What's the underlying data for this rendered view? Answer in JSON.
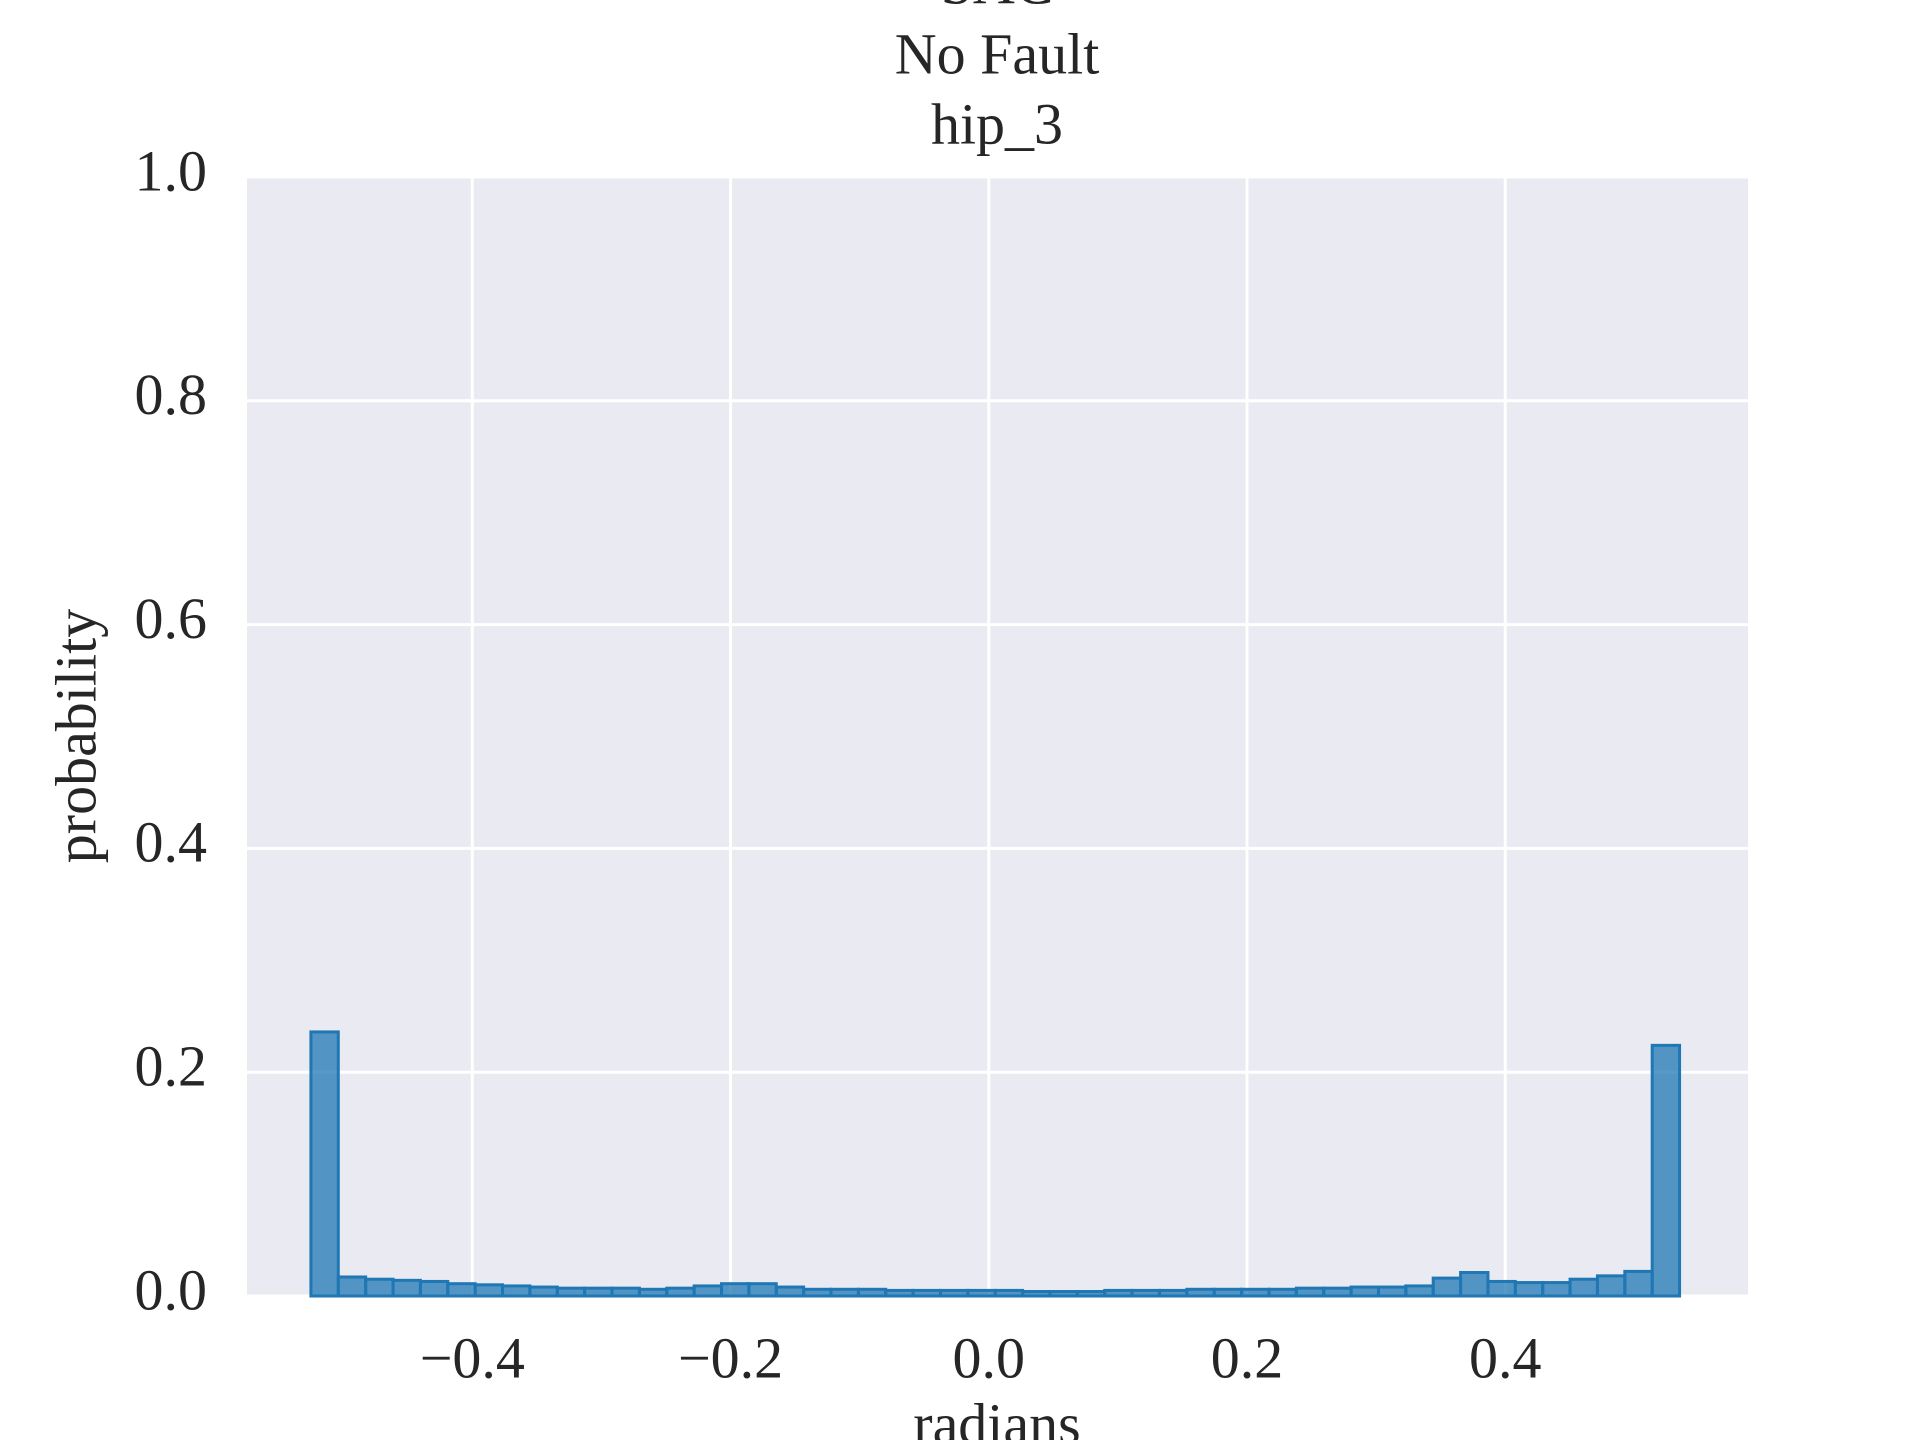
{
  "chart_data": {
    "type": "histogram",
    "title": [
      "SAC",
      "No Fault",
      "hip_3"
    ],
    "xlabel": "radians",
    "ylabel": "probability",
    "bins": [
      -0.525,
      -0.5038,
      -0.4826,
      -0.4614,
      -0.4402,
      -0.419,
      -0.3978,
      -0.3766,
      -0.3554,
      -0.3342,
      -0.313,
      -0.2918,
      -0.2706,
      -0.2494,
      -0.2282,
      -0.207,
      -0.1858,
      -0.1646,
      -0.1434,
      -0.1222,
      -0.101,
      -0.0798,
      -0.0586,
      -0.0374,
      -0.0162,
      0.005,
      0.0262,
      0.0474,
      0.0686,
      0.0898,
      0.111,
      0.1322,
      0.1534,
      0.1746,
      0.1958,
      0.217,
      0.2382,
      0.2594,
      0.2806,
      0.3018,
      0.323,
      0.3442,
      0.3654,
      0.3866,
      0.4078,
      0.429,
      0.4502,
      0.4714,
      0.4926,
      0.5138,
      0.535
    ],
    "values": [
      0.236,
      0.017,
      0.015,
      0.014,
      0.013,
      0.011,
      0.01,
      0.009,
      0.008,
      0.007,
      0.007,
      0.007,
      0.006,
      0.007,
      0.009,
      0.011,
      0.011,
      0.008,
      0.006,
      0.006,
      0.006,
      0.005,
      0.005,
      0.005,
      0.005,
      0.005,
      0.004,
      0.004,
      0.004,
      0.005,
      0.005,
      0.005,
      0.006,
      0.006,
      0.006,
      0.006,
      0.007,
      0.007,
      0.008,
      0.008,
      0.009,
      0.016,
      0.021,
      0.013,
      0.012,
      0.012,
      0.015,
      0.018,
      0.022,
      0.224
    ],
    "color": "#1f77b4",
    "xlim": [
      -0.5745,
      0.588
    ],
    "ylim": [
      0,
      1
    ],
    "xticks": [
      {
        "value": -0.4,
        "label": "−0.4"
      },
      {
        "value": -0.2,
        "label": "−0.2"
      },
      {
        "value": 0,
        "label": "0.0"
      },
      0.2,
      0.4
    ],
    "yticks": [
      {
        "value": 0,
        "label": "0.0"
      },
      0.2,
      0.4,
      0.6,
      0.8,
      {
        "value": 1,
        "label": "1.0"
      }
    ],
    "grid": true
  }
}
